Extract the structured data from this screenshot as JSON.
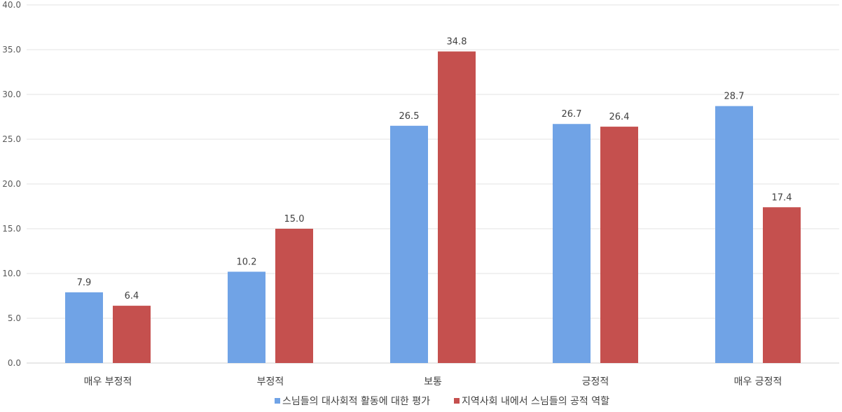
{
  "chart_data": {
    "type": "bar",
    "categories": [
      "매우 부정적",
      "부정적",
      "보통",
      "긍정적",
      "매우 긍정적"
    ],
    "series": [
      {
        "name": "스님들의 대사회적 활동에 대한 평가",
        "color": "#70A3E6",
        "values": [
          7.9,
          10.2,
          26.5,
          26.7,
          28.7
        ]
      },
      {
        "name": "지역사회 내에서 스님들의 공적 역할",
        "color": "#C5504E",
        "values": [
          6.4,
          15.0,
          34.8,
          26.4,
          17.4
        ]
      }
    ],
    "ylim": [
      0,
      40
    ],
    "yticks": [
      "0.0",
      "5.0",
      "10.0",
      "15.0",
      "20.0",
      "25.0",
      "30.0",
      "35.0",
      "40.0"
    ],
    "grid": true,
    "legend_position": "bottom"
  }
}
